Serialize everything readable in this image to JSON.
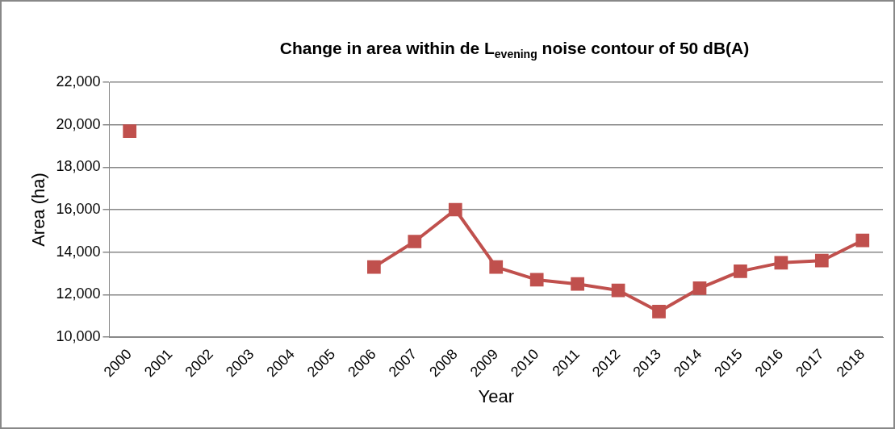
{
  "chart_data": {
    "type": "line",
    "title": "Change in area within de L$_{evening}$ noise contour of 50 dB(A)",
    "xlabel": "Year",
    "ylabel": "Area (ha)",
    "categories": [
      "2000",
      "2001",
      "2002",
      "2003",
      "2004",
      "2005",
      "2006",
      "2007",
      "2008",
      "2009",
      "2010",
      "2011",
      "2012",
      "2013",
      "2014",
      "2015",
      "2016",
      "2017",
      "2018"
    ],
    "series": [
      {
        "color": "#c0504d",
        "values": [
          19700,
          null,
          null,
          null,
          null,
          null,
          13300,
          14500,
          16000,
          13300,
          12700,
          12500,
          12200,
          11200,
          12300,
          13100,
          13500,
          13600,
          14550
        ]
      }
    ],
    "ylim": [
      10000,
      22000
    ],
    "yticks": [
      {
        "value": 10000,
        "label": "10,000"
      },
      {
        "value": 12000,
        "label": "12,000"
      },
      {
        "value": 14000,
        "label": "14,000"
      },
      {
        "value": 16000,
        "label": "16,000"
      },
      {
        "value": 18000,
        "label": "18,000"
      },
      {
        "value": 20000,
        "label": "20,000"
      },
      {
        "value": 22000,
        "label": "22,000"
      }
    ],
    "grid": "y",
    "legend": false,
    "marker": "square",
    "line_style": "solid"
  }
}
